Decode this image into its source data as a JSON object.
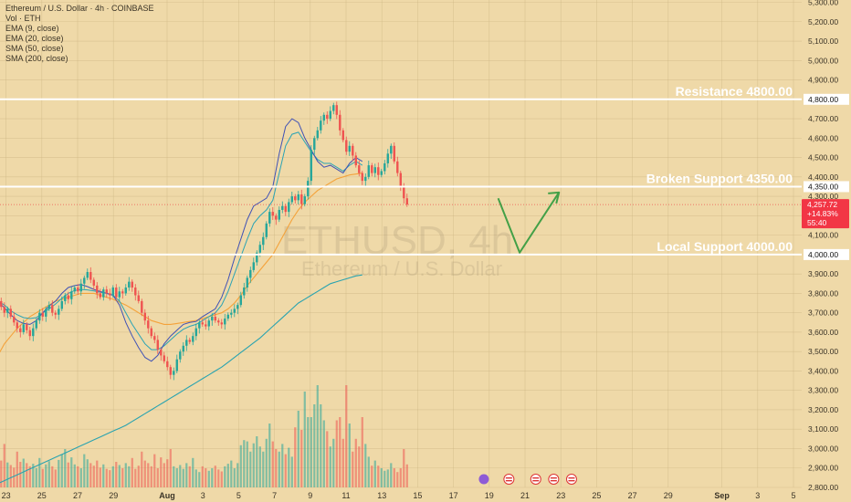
{
  "header": {
    "symbol_line": "Ethereum / U.S. Dollar · 4h · COINBASE",
    "indicators": [
      "Vol · ETH",
      "EMA (9, close)",
      "EMA (20, close)",
      "SMA (50, close)",
      "SMA (200, close)"
    ]
  },
  "watermark": {
    "ticker": "ETHUSD, 4h",
    "name": "Ethereum / U.S. Dollar"
  },
  "price_badge": {
    "price": "4,257.72",
    "change": "+14.83%",
    "countdown": "55:40"
  },
  "colors": {
    "background": "#efd9a8",
    "up": "#26a69a",
    "down": "#ef5350",
    "ema9": "#3f51b5",
    "ema20": "#2aa3b5",
    "sma50": "#f4a23a",
    "sma200": "#29a3b0",
    "projection": "#43a047",
    "level_line": "#ffffff",
    "badge": "#f23645"
  },
  "chart_data": {
    "type": "candlestick",
    "symbol": "ETHUSD",
    "timeframe": "4h",
    "exchange": "COINBASE",
    "ylim": [
      2800,
      5300
    ],
    "y_ticks": [
      "2,800.00",
      "2,900.00",
      "3,000.00",
      "3,100.00",
      "3,200.00",
      "3,300.00",
      "3,400.00",
      "3,500.00",
      "3,600.00",
      "3,700.00",
      "3,800.00",
      "3,900.00",
      "4,000.00",
      "4,100.00",
      "4,200.00",
      "4,300.00",
      "4,400.00",
      "4,500.00",
      "4,600.00",
      "4,700.00",
      "4,800.00",
      "4,900.00",
      "5,000.00",
      "5,100.00",
      "5,200.00",
      "5,300.00"
    ],
    "y_tick_values": [
      2800,
      2900,
      3000,
      3100,
      3200,
      3300,
      3400,
      3500,
      3600,
      3700,
      3800,
      3900,
      4000,
      4100,
      4200,
      4300,
      4400,
      4500,
      4600,
      4700,
      4800,
      4900,
      5000,
      5100,
      5200,
      5300
    ],
    "x_ticks": [
      {
        "label": "23",
        "day": -9
      },
      {
        "label": "25",
        "day": -7
      },
      {
        "label": "27",
        "day": -5
      },
      {
        "label": "29",
        "day": -3
      },
      {
        "label": "Aug",
        "day": 0
      },
      {
        "label": "3",
        "day": 2
      },
      {
        "label": "5",
        "day": 4
      },
      {
        "label": "7",
        "day": 6
      },
      {
        "label": "9",
        "day": 8
      },
      {
        "label": "11",
        "day": 10
      },
      {
        "label": "13",
        "day": 12
      },
      {
        "label": "15",
        "day": 14
      },
      {
        "label": "17",
        "day": 16
      },
      {
        "label": "19",
        "day": 18
      },
      {
        "label": "21",
        "day": 20
      },
      {
        "label": "23",
        "day": 22
      },
      {
        "label": "25",
        "day": 24
      },
      {
        "label": "27",
        "day": 26
      },
      {
        "label": "29",
        "day": 28
      },
      {
        "label": "Sep",
        "day": 31
      },
      {
        "label": "3",
        "day": 33
      },
      {
        "label": "5",
        "day": 35
      }
    ],
    "closes": [
      3760,
      3730,
      3700,
      3720,
      3680,
      3650,
      3620,
      3600,
      3640,
      3610,
      3580,
      3620,
      3660,
      3700,
      3680,
      3720,
      3740,
      3700,
      3690,
      3720,
      3760,
      3790,
      3770,
      3810,
      3830,
      3810,
      3850,
      3880,
      3910,
      3870,
      3840,
      3800,
      3780,
      3820,
      3800,
      3790,
      3830,
      3780,
      3810,
      3800,
      3830,
      3860,
      3830,
      3790,
      3760,
      3700,
      3660,
      3620,
      3580,
      3560,
      3510,
      3480,
      3450,
      3420,
      3380,
      3400,
      3460,
      3500,
      3530,
      3560,
      3550,
      3580,
      3620,
      3650,
      3640,
      3630,
      3660,
      3680,
      3660,
      3650,
      3640,
      3670,
      3690,
      3700,
      3720,
      3740,
      3790,
      3830,
      3880,
      3920,
      3960,
      4010,
      4050,
      4090,
      4160,
      4220,
      4200,
      4180,
      4230,
      4250,
      4220,
      4270,
      4300,
      4280,
      4310,
      4260,
      4300,
      4380,
      4540,
      4600,
      4640,
      4690,
      4720,
      4700,
      4740,
      4770,
      4720,
      4640,
      4590,
      4530,
      4560,
      4510,
      4460,
      4420,
      4380,
      4400,
      4460,
      4420,
      4450,
      4410,
      4430,
      4470,
      4520,
      4560,
      4480,
      4420,
      4350,
      4290,
      4257.72
    ],
    "candle_step_px": 3.5,
    "first_candle_day": -9.45,
    "volume_ylim": [
      0,
      2000
    ],
    "volumes": [
      500,
      420,
      680,
      390,
      350,
      310,
      560,
      400,
      450,
      380,
      330,
      370,
      300,
      460,
      290,
      360,
      410,
      330,
      280,
      430,
      520,
      600,
      390,
      470,
      360,
      330,
      300,
      520,
      440,
      380,
      340,
      420,
      310,
      360,
      290,
      270,
      330,
      400,
      350,
      300,
      380,
      330,
      460,
      290,
      340,
      560,
      420,
      380,
      330,
      520,
      300,
      470,
      380,
      440,
      600,
      330,
      300,
      350,
      290,
      380,
      330,
      460,
      280,
      240,
      330,
      300,
      260,
      300,
      340,
      280,
      250,
      330,
      370,
      420,
      300,
      380,
      660,
      740,
      720,
      560,
      690,
      800,
      640,
      560,
      760,
      1000,
      720,
      600,
      560,
      680,
      520,
      620,
      480,
      940,
      1200,
      900,
      1500,
      1100,
      1100,
      1300,
      1600,
      1300,
      1050,
      880,
      640,
      760,
      1050,
      1100,
      760,
      1600,
      1000,
      560,
      760,
      640,
      1100,
      680,
      480,
      340,
      420,
      340,
      300,
      260,
      280,
      380,
      300,
      240,
      300,
      600,
      360
    ],
    "ema9": [
      3760,
      3725,
      3690,
      3660,
      3645,
      3640,
      3660,
      3700,
      3735,
      3760,
      3800,
      3830,
      3840,
      3845,
      3835,
      3820,
      3810,
      3800,
      3790,
      3740,
      3650,
      3580,
      3520,
      3470,
      3450,
      3480,
      3540,
      3580,
      3610,
      3640,
      3650,
      3655,
      3680,
      3700,
      3720,
      3780,
      3870,
      3980,
      4080,
      4180,
      4250,
      4270,
      4290,
      4350,
      4520,
      4660,
      4700,
      4680,
      4600,
      4540,
      4480,
      4450,
      4460,
      4440,
      4420,
      4470,
      4500,
      4480
    ],
    "ema20": [
      3760,
      3740,
      3710,
      3690,
      3675,
      3670,
      3675,
      3700,
      3720,
      3745,
      3775,
      3800,
      3815,
      3820,
      3818,
      3812,
      3806,
      3800,
      3790,
      3760,
      3700,
      3640,
      3590,
      3540,
      3510,
      3510,
      3530,
      3560,
      3590,
      3615,
      3630,
      3640,
      3660,
      3680,
      3700,
      3740,
      3810,
      3900,
      3990,
      4080,
      4160,
      4200,
      4230,
      4280,
      4420,
      4560,
      4620,
      4630,
      4580,
      4530,
      4490,
      4470,
      4470,
      4450,
      4430,
      4460,
      4480,
      4460
    ],
    "sma50": [
      3480,
      3540,
      3580,
      3620,
      3650,
      3680,
      3700,
      3720,
      3740,
      3760,
      3770,
      3780,
      3790,
      3800,
      3800,
      3800,
      3790,
      3780,
      3770,
      3755,
      3740,
      3720,
      3700,
      3680,
      3660,
      3650,
      3640,
      3640,
      3645,
      3650,
      3655,
      3660,
      3670,
      3680,
      3690,
      3700,
      3720,
      3750,
      3790,
      3840,
      3880,
      3920,
      3960,
      4000,
      4060,
      4120,
      4180,
      4230,
      4270,
      4300,
      4330,
      4350,
      4370,
      4390,
      4400,
      4410,
      4415,
      4420
    ],
    "sma200": [
      2820,
      2835,
      2850,
      2865,
      2880,
      2895,
      2910,
      2925,
      2940,
      2955,
      2970,
      2985,
      3000,
      3015,
      3030,
      3045,
      3060,
      3075,
      3090,
      3105,
      3120,
      3140,
      3160,
      3180,
      3200,
      3220,
      3240,
      3260,
      3280,
      3300,
      3320,
      3340,
      3360,
      3380,
      3400,
      3420,
      3445,
      3470,
      3495,
      3520,
      3545,
      3570,
      3600,
      3630,
      3660,
      3690,
      3720,
      3750,
      3770,
      3790,
      3810,
      3830,
      3850,
      3860,
      3870,
      3880,
      3890,
      3895
    ],
    "levels": [
      {
        "label": "Resistance 4800.00",
        "price": 4800,
        "axis_label": "4,800.00"
      },
      {
        "label": "Broken Support 4350.00",
        "price": 4350,
        "axis_label": "4,350.00"
      },
      {
        "label": "Local Support 4000.00",
        "price": 4000,
        "axis_label": "4,000.00"
      }
    ],
    "current_price": 4257.72,
    "projection_path": [
      {
        "day": 18.5,
        "price": 4290
      },
      {
        "day": 19.7,
        "price": 4010
      },
      {
        "day": 21.9,
        "price": 4320
      }
    ]
  }
}
